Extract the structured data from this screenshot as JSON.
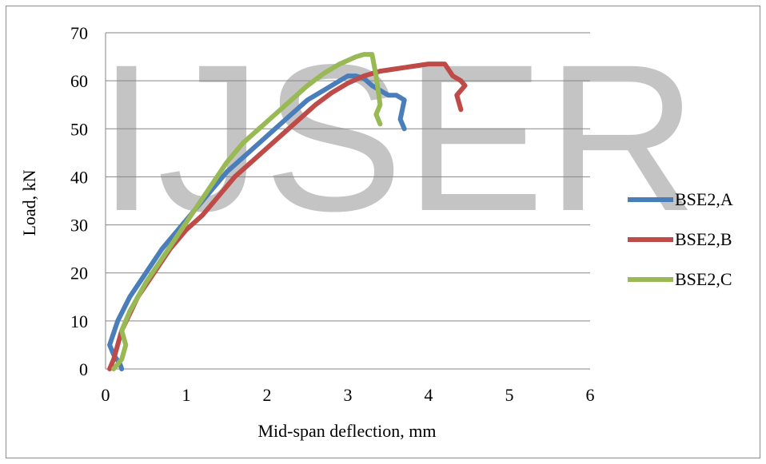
{
  "watermark": "IJSER",
  "chart_data": {
    "type": "line",
    "title": "",
    "xlabel": "Mid-span deflection, mm",
    "ylabel": "Load, kN",
    "xlim": [
      0,
      6
    ],
    "ylim": [
      0,
      70
    ],
    "xticks": [
      0,
      1,
      2,
      3,
      4,
      5,
      6
    ],
    "yticks": [
      0,
      10,
      20,
      30,
      40,
      50,
      60,
      70
    ],
    "grid": "horizontal",
    "legend_position": "right",
    "series": [
      {
        "name": "BSE2,A",
        "color": "#4a7ebb",
        "x": [
          0.2,
          0.18,
          0.1,
          0.05,
          0.15,
          0.3,
          0.5,
          0.7,
          0.9,
          1.1,
          1.3,
          1.5,
          1.7,
          1.9,
          2.1,
          2.3,
          2.5,
          2.7,
          2.9,
          3.0,
          3.1,
          3.2,
          3.3,
          3.4,
          3.5,
          3.6,
          3.7,
          3.65,
          3.7
        ],
        "y": [
          0,
          1,
          3,
          5,
          10,
          15,
          20,
          25,
          29,
          33,
          37,
          41,
          44,
          47,
          50,
          53,
          56,
          58,
          60,
          61,
          61,
          60.5,
          59,
          58,
          57,
          57,
          56,
          52,
          50
        ]
      },
      {
        "name": "BSE2,B",
        "color": "#be4b48",
        "x": [
          0.05,
          0.1,
          0.2,
          0.4,
          0.6,
          0.8,
          1.0,
          1.2,
          1.4,
          1.6,
          1.8,
          2.0,
          2.2,
          2.4,
          2.6,
          2.8,
          3.0,
          3.2,
          3.4,
          3.6,
          3.8,
          4.0,
          4.2,
          4.3,
          4.4,
          4.45,
          4.35,
          4.4
        ],
        "y": [
          0,
          2,
          8,
          15,
          20,
          25,
          29,
          32,
          36,
          40,
          43,
          46,
          49,
          52,
          55,
          57.5,
          59.5,
          61,
          62,
          62.5,
          63,
          63.5,
          63.5,
          61,
          60,
          59,
          57,
          54
        ]
      },
      {
        "name": "BSE2,C",
        "color": "#98b954",
        "x": [
          0.1,
          0.2,
          0.25,
          0.2,
          0.3,
          0.5,
          0.7,
          0.9,
          1.1,
          1.3,
          1.5,
          1.7,
          1.9,
          2.1,
          2.3,
          2.5,
          2.7,
          2.9,
          3.1,
          3.2,
          3.3,
          3.35,
          3.4,
          3.35,
          3.4
        ],
        "y": [
          0,
          2,
          5,
          8,
          12,
          18,
          23,
          28,
          33,
          38,
          43,
          47,
          50,
          53,
          56,
          59,
          61.5,
          63.5,
          65,
          65.5,
          65.5,
          61,
          55,
          53,
          51
        ]
      }
    ]
  }
}
